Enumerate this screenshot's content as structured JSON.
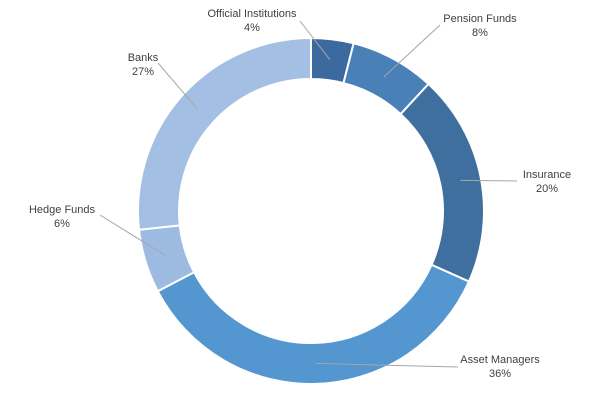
{
  "chart_data": {
    "type": "pie",
    "variant": "doughnut",
    "title": "",
    "categories": [
      "Official Institutions",
      "Pension Funds",
      "Insurance",
      "Asset Managers",
      "Hedge Funds",
      "Banks"
    ],
    "values": [
      4,
      8,
      20,
      36,
      6,
      27
    ],
    "value_labels": [
      "4%",
      "8%",
      "20%",
      "36%",
      "6%",
      "27%"
    ],
    "colors": [
      "#3d6a9e",
      "#4a80b8",
      "#3f6f9f",
      "#5497d0",
      "#9dbbe0",
      "#a3bfe3"
    ],
    "legend": "none",
    "labels_position": "outside"
  }
}
